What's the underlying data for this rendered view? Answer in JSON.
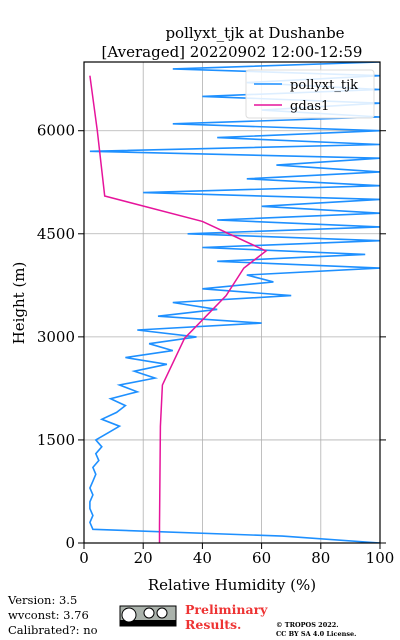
{
  "chart_data": {
    "type": "line",
    "title": "pollyxt_tjk at Dushanbe",
    "subtitle": "[Averaged] 20220902 12:00-12:59",
    "xlabel": "Relative Humidity (%)",
    "ylabel": "Height (m)",
    "xlim": [
      0,
      100
    ],
    "ylim": [
      0,
      7000
    ],
    "xticks": [
      0,
      20,
      40,
      60,
      80,
      100
    ],
    "yticks": [
      0,
      1500,
      3000,
      4500,
      6000
    ],
    "grid": true,
    "legend": "upper right",
    "series": [
      {
        "name": "pollyxt_tjk",
        "color": "#1e90ff",
        "x": [
          100,
          67,
          3,
          2,
          3,
          2,
          2,
          3,
          2,
          3,
          4,
          3,
          5,
          4,
          6,
          4,
          8,
          12,
          6,
          11,
          14,
          9,
          18,
          12,
          24,
          17,
          28,
          14,
          30,
          22,
          38,
          18,
          60,
          25,
          45,
          30,
          70,
          40,
          64,
          55,
          100,
          45,
          95,
          40,
          100,
          35,
          100,
          45,
          100,
          60,
          100,
          20,
          100,
          55,
          100,
          65,
          100,
          2,
          100,
          45,
          100,
          30,
          100,
          60,
          100,
          40,
          100,
          55,
          100,
          30,
          100
        ],
        "y": [
          0,
          100,
          200,
          300,
          400,
          500,
          600,
          700,
          800,
          900,
          1000,
          1100,
          1200,
          1300,
          1400,
          1500,
          1600,
          1700,
          1800,
          1900,
          2000,
          2100,
          2200,
          2300,
          2400,
          2500,
          2600,
          2700,
          2800,
          2900,
          3000,
          3100,
          3200,
          3300,
          3400,
          3500,
          3600,
          3700,
          3800,
          3900,
          4000,
          4100,
          4200,
          4300,
          4400,
          4500,
          4600,
          4700,
          4800,
          4900,
          5000,
          5100,
          5200,
          5300,
          5400,
          5500,
          5600,
          5700,
          5800,
          5900,
          6000,
          6100,
          6200,
          6300,
          6400,
          6500,
          6600,
          6700,
          6800,
          6900,
          7000
        ]
      },
      {
        "name": "gdas1",
        "color": "#e6149b",
        "x": [
          25.5,
          25.5,
          25.8,
          26.5,
          34,
          48,
          54,
          61.5,
          40,
          7,
          4.5,
          2
        ],
        "y": [
          0,
          250,
          1700,
          2300,
          2980,
          3600,
          4000,
          4250,
          4680,
          5050,
          6000,
          6800
        ]
      }
    ],
    "footer": {
      "version": "Version: 3.5",
      "wvconst": "wvconst:   3.76",
      "calibrated": "Calibrated?: no",
      "preliminary": [
        "Preliminary",
        "Results."
      ],
      "copyright": [
        "© TROPOS 2022.",
        "CC BY SA 4.0 License."
      ]
    }
  }
}
